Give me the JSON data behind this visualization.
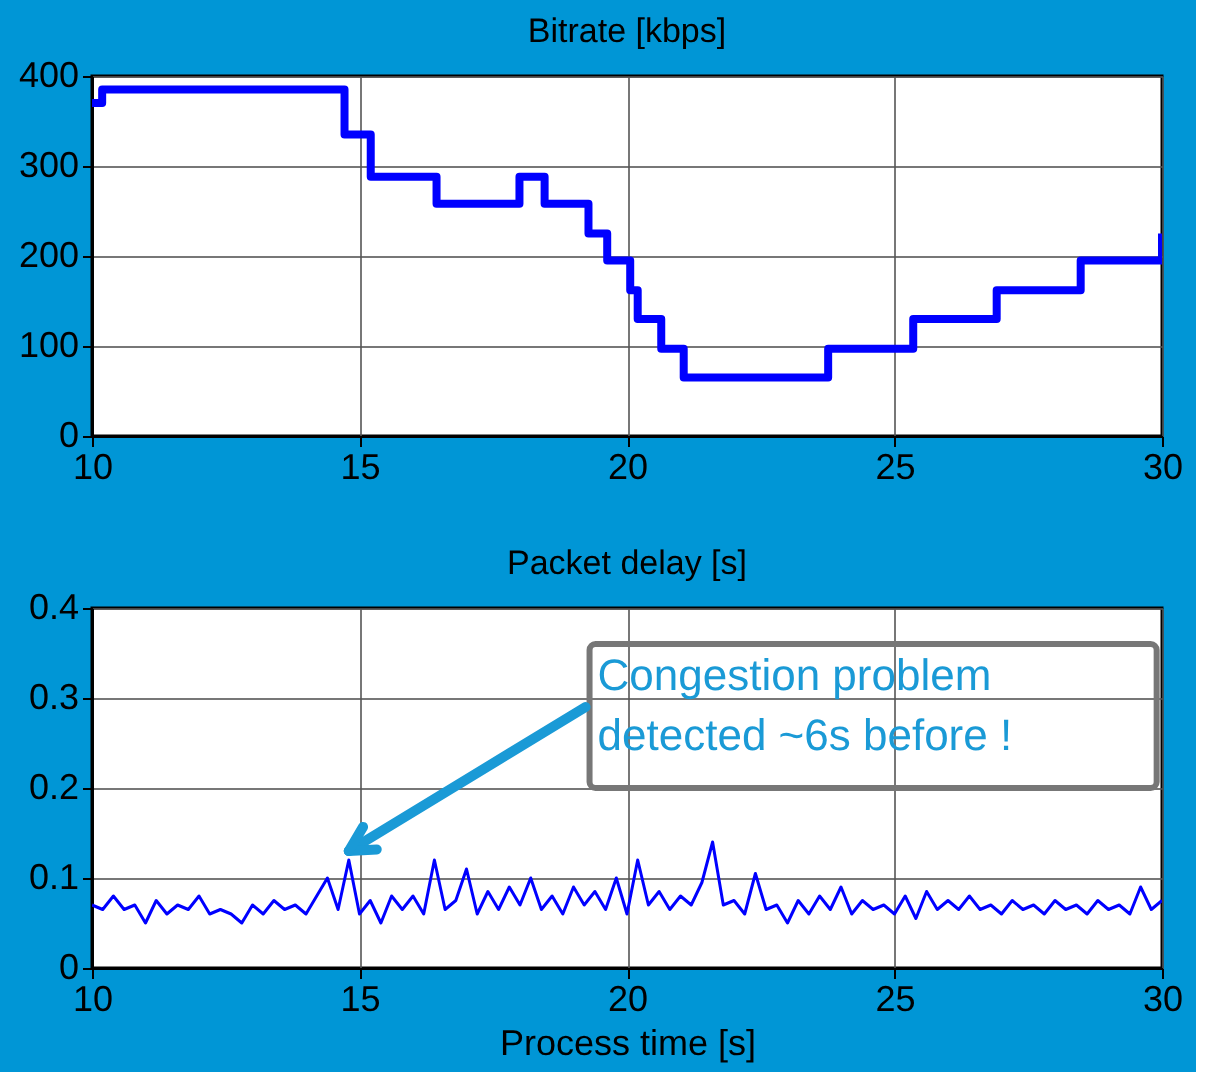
{
  "chart_data": [
    {
      "type": "step",
      "title": "Bitrate [kbps]",
      "x": [
        10,
        10.19,
        14.72,
        15.21,
        16.44,
        17.99,
        18.46,
        19.28,
        19.63,
        20.06,
        20.2,
        20.64,
        21.06,
        23.76,
        25.35,
        26.91,
        28.48,
        30
      ],
      "series": [
        {
          "color": "#0000ff",
          "values": [
            370,
            385,
            335,
            288,
            258,
            288,
            258,
            225,
            195,
            162,
            130,
            97,
            65,
            97,
            130,
            162,
            195,
            225
          ]
        }
      ],
      "xlim": [
        10,
        30
      ],
      "xticks": [
        10,
        15,
        20,
        25,
        30
      ],
      "ylim": [
        0,
        400
      ],
      "yticks": [
        0,
        100,
        200,
        300,
        400
      ],
      "grid": true
    },
    {
      "type": "line",
      "title": "Packet delay [s]",
      "xlabel": "Process time [s]",
      "x": [
        10.0,
        10.2,
        10.4,
        10.6,
        10.8,
        11.0,
        11.2,
        11.4,
        11.6,
        11.8,
        12.0,
        12.2,
        12.4,
        12.6,
        12.8,
        13.0,
        13.2,
        13.4,
        13.6,
        13.8,
        14.0,
        14.2,
        14.4,
        14.6,
        14.8,
        15.0,
        15.2,
        15.4,
        15.6,
        15.8,
        16.0,
        16.2,
        16.4,
        16.6,
        16.8,
        17.0,
        17.2,
        17.4,
        17.6,
        17.8,
        18.0,
        18.2,
        18.4,
        18.6,
        18.8,
        19.0,
        19.2,
        19.4,
        19.6,
        19.8,
        20.0,
        20.2,
        20.4,
        20.6,
        20.8,
        21.0,
        21.2,
        21.4,
        21.6,
        21.8,
        22.0,
        22.2,
        22.4,
        22.6,
        22.8,
        23.0,
        23.2,
        23.4,
        23.6,
        23.8,
        24.0,
        24.2,
        24.4,
        24.6,
        24.8,
        25.0,
        25.2,
        25.4,
        25.6,
        25.8,
        26.0,
        26.2,
        26.4,
        26.6,
        26.8,
        27.0,
        27.2,
        27.4,
        27.6,
        27.8,
        28.0,
        28.2,
        28.4,
        28.6,
        28.8,
        29.0,
        29.2,
        29.4,
        29.6,
        29.8,
        30.0
      ],
      "series": [
        {
          "color": "#0000ff",
          "values": [
            0.07,
            0.065,
            0.08,
            0.065,
            0.07,
            0.05,
            0.075,
            0.06,
            0.07,
            0.065,
            0.08,
            0.06,
            0.065,
            0.06,
            0.05,
            0.07,
            0.06,
            0.075,
            0.065,
            0.07,
            0.06,
            0.08,
            0.1,
            0.065,
            0.12,
            0.06,
            0.075,
            0.05,
            0.08,
            0.065,
            0.08,
            0.06,
            0.12,
            0.065,
            0.075,
            0.11,
            0.06,
            0.085,
            0.065,
            0.09,
            0.07,
            0.1,
            0.065,
            0.08,
            0.06,
            0.09,
            0.07,
            0.085,
            0.065,
            0.1,
            0.06,
            0.12,
            0.07,
            0.085,
            0.065,
            0.08,
            0.07,
            0.095,
            0.14,
            0.07,
            0.075,
            0.06,
            0.105,
            0.065,
            0.07,
            0.05,
            0.075,
            0.06,
            0.08,
            0.065,
            0.09,
            0.06,
            0.075,
            0.065,
            0.07,
            0.06,
            0.08,
            0.055,
            0.085,
            0.065,
            0.075,
            0.065,
            0.08,
            0.065,
            0.07,
            0.06,
            0.075,
            0.065,
            0.07,
            0.06,
            0.075,
            0.065,
            0.07,
            0.06,
            0.075,
            0.065,
            0.07,
            0.06,
            0.09,
            0.065,
            0.075
          ]
        }
      ],
      "xlim": [
        10,
        30
      ],
      "xticks": [
        10,
        15,
        20,
        25,
        30
      ],
      "ylim": [
        0,
        0.4
      ],
      "yticks": [
        0,
        0.1,
        0.2,
        0.3,
        0.4
      ],
      "grid": true,
      "annotations": [
        {
          "text": "Congestion problem\ndetected ~6s before !",
          "x": 14.8,
          "y": 0.13
        }
      ]
    }
  ]
}
